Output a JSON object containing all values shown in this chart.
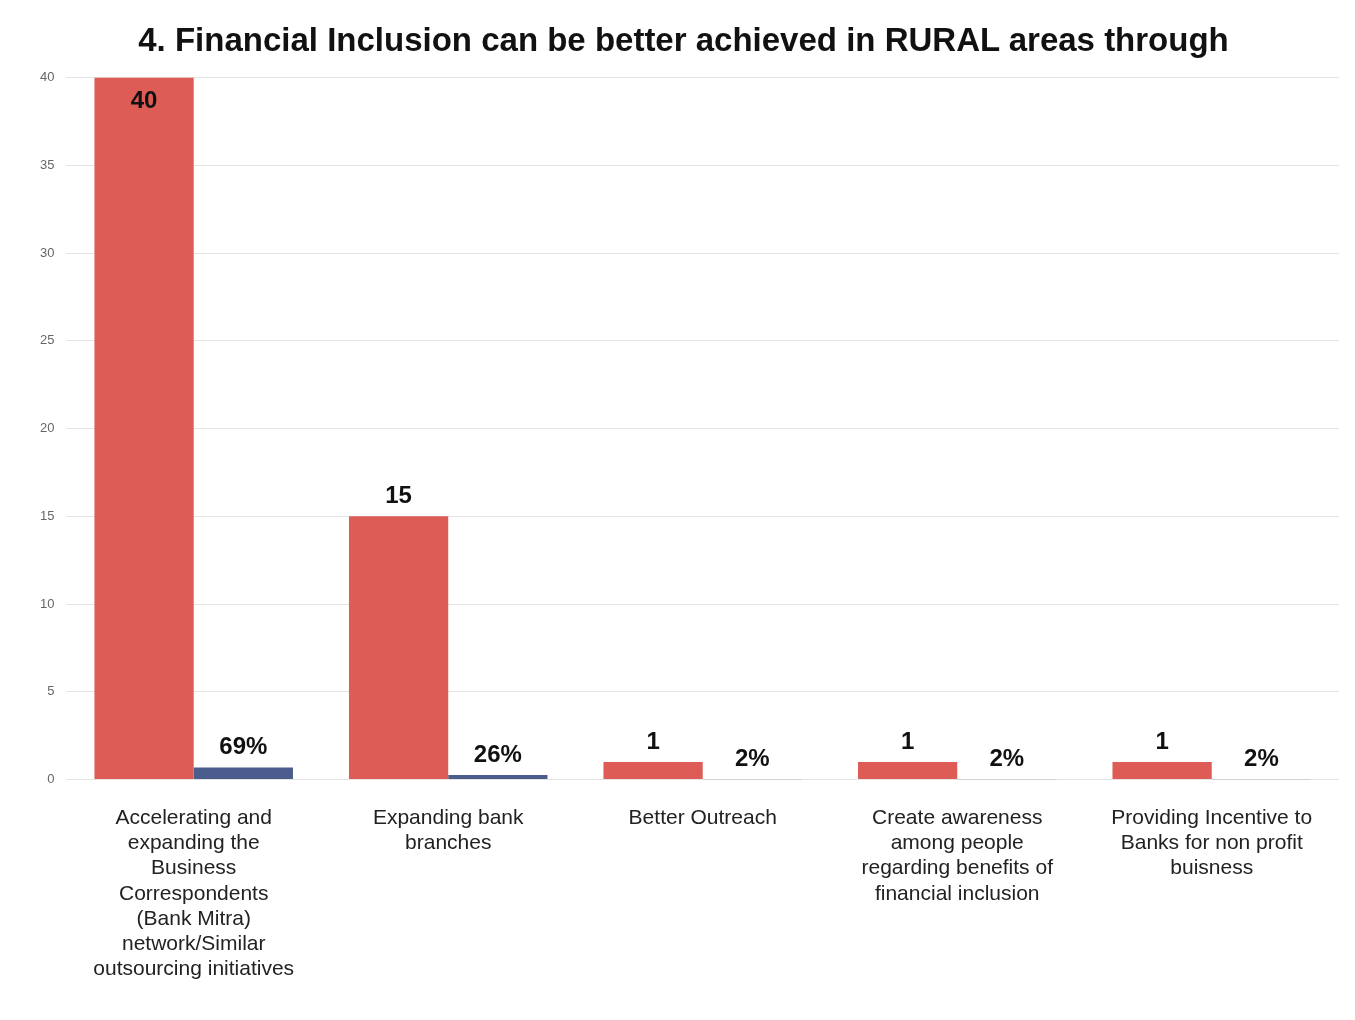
{
  "chart_data": {
    "type": "bar",
    "title": "4. Financial Inclusion can be better achieved in RURAL areas through",
    "categories": [
      "Accelerating and expanding the Business Correspondents (Bank Mitra) network/Similar outsourcing initiatives",
      "Expanding bank branches",
      "Better Outreach",
      "Create awareness among people regarding benefits of financial inclusion",
      "Providing Incentive to Banks for non profit buisness"
    ],
    "series": [
      {
        "color": "#dd5c55",
        "values": [
          40,
          15,
          1,
          1,
          1
        ],
        "value_labels": [
          "40",
          "15",
          "1",
          "1",
          "1"
        ]
      },
      {
        "color": "#4a5d8c",
        "values": [
          0.69,
          0.26,
          0.02,
          0.02,
          0.02
        ],
        "value_labels": [
          "69%",
          "26%",
          "2%",
          "2%",
          "2%"
        ]
      }
    ],
    "ylim": [
      0,
      40
    ],
    "yticks": [
      0,
      5,
      10,
      15,
      20,
      25,
      30,
      35,
      40
    ],
    "grid": "y",
    "legend": false
  }
}
